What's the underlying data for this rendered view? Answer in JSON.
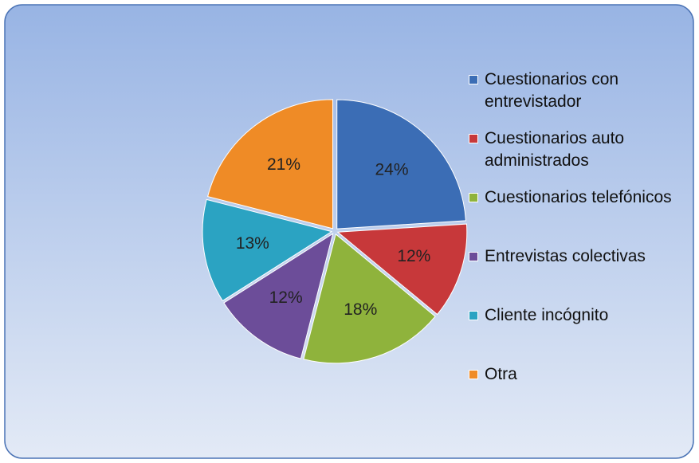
{
  "chart_data": {
    "type": "pie",
    "categories": [
      "Cuestionarios con entrevistador",
      "Cuestionarios auto administrados",
      "Cuestionarios telefónicos",
      "Entrevistas colectivas",
      "Cliente incógnito",
      "Otra"
    ],
    "values": [
      24,
      12,
      18,
      12,
      13,
      21
    ],
    "value_labels": [
      "24%",
      "12%",
      "18%",
      "12%",
      "13%",
      "21%"
    ],
    "colors": [
      "#3b6db5",
      "#c7383a",
      "#8fb33c",
      "#6c4d99",
      "#2ba3c2",
      "#ef8b26"
    ],
    "legend": "right"
  }
}
